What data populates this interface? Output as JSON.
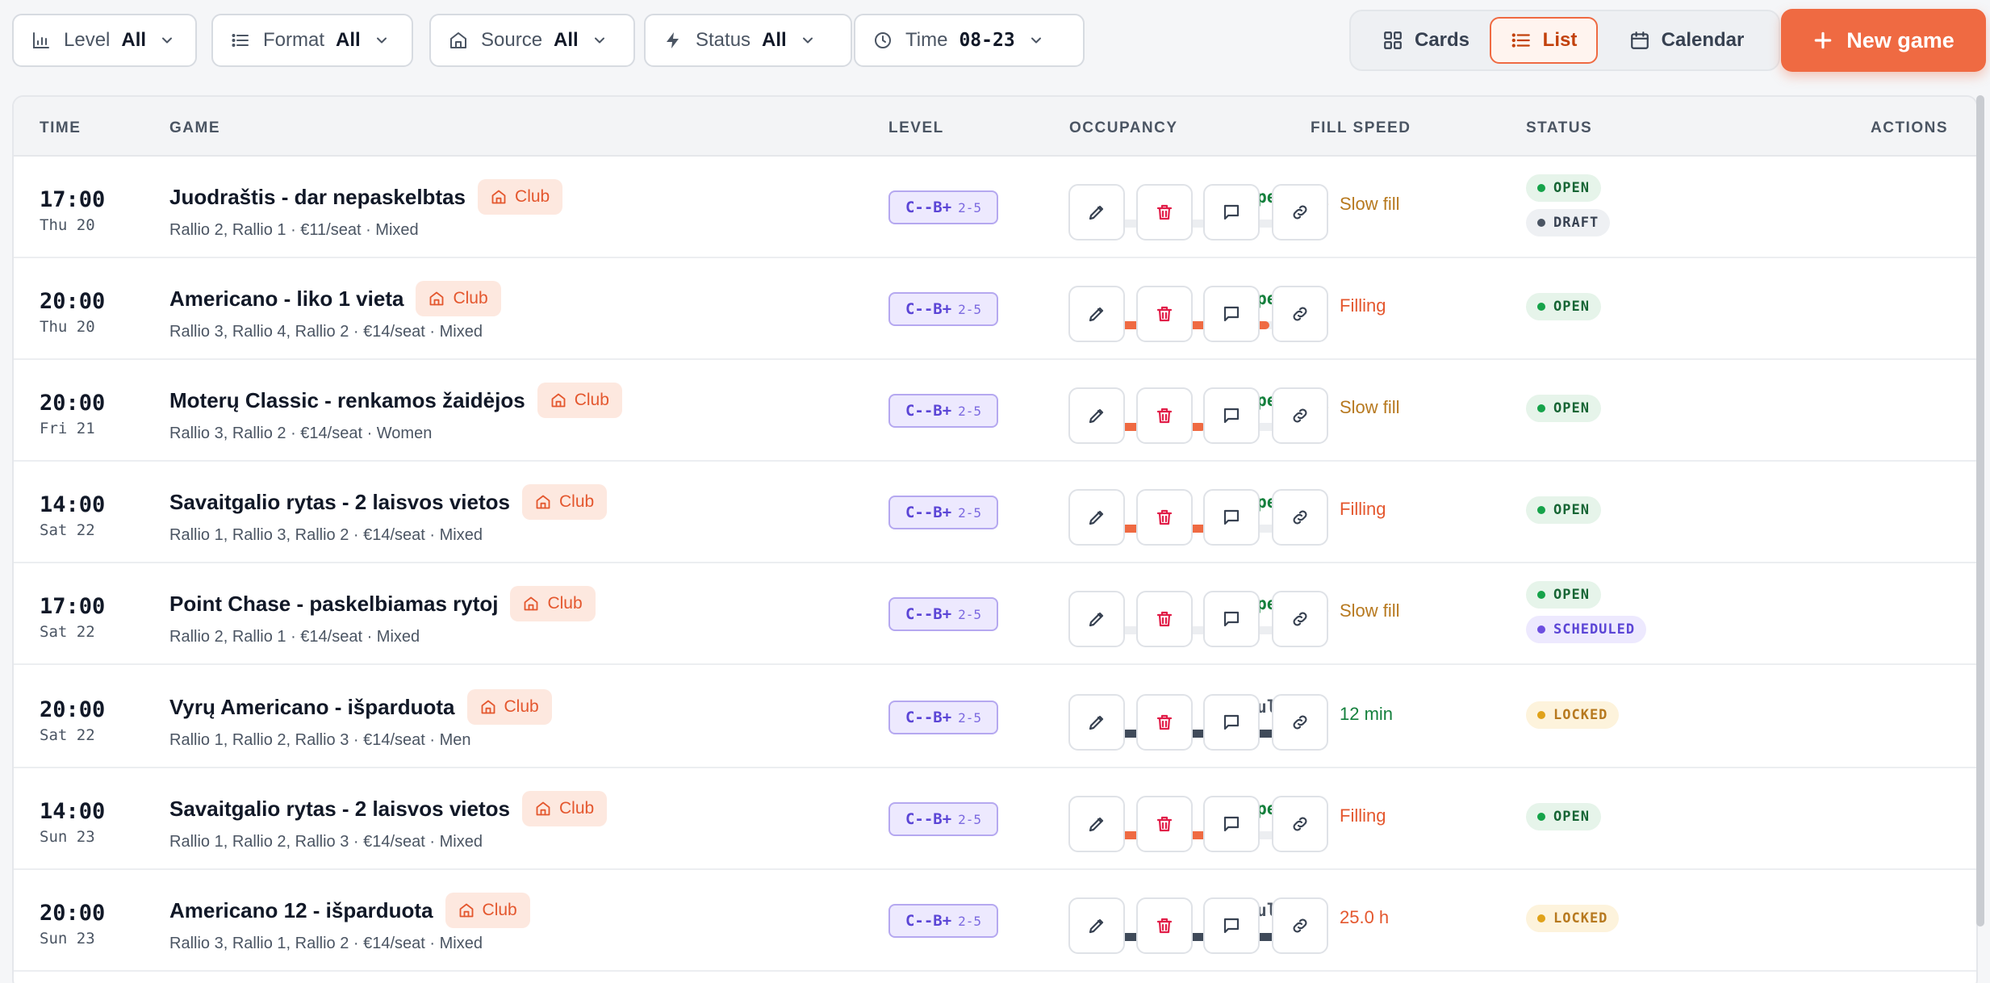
{
  "filters": [
    {
      "label": "Level",
      "value": "All",
      "icon": "bar-chart-icon"
    },
    {
      "label": "Format",
      "value": "All",
      "icon": "list-icon"
    },
    {
      "label": "Source",
      "value": "All",
      "icon": "home-icon"
    },
    {
      "label": "Status",
      "value": "All",
      "icon": "bolt-icon"
    },
    {
      "label": "Time",
      "value": "08-23",
      "icon": "clock-icon"
    }
  ],
  "views": {
    "cards": "Cards",
    "list": "List",
    "calendar": "Calendar",
    "active": "list"
  },
  "new_game_label": "New game",
  "columns": {
    "time": "TIME",
    "game": "GAME",
    "level": "LEVEL",
    "occupancy": "OCCUPANCY",
    "fill_speed": "FILL SPEED",
    "status": "STATUS",
    "actions": "ACTIONS"
  },
  "colors": {
    "accent": "#ef6a42",
    "bar_filling": "#ef6a42",
    "bar_full": "#3f4a59",
    "open": "#15803d",
    "draft": "#4b5563",
    "scheduled": "#6d4fe0",
    "locked": "#d97706"
  },
  "rows": [
    {
      "time": "17:00",
      "day": "Thu 20",
      "title": "Juodraštis - dar nepaskelbtas",
      "source": "Club",
      "details": "Rallio 2, Rallio 1 · €11/seat · Mixed",
      "level": "C--B+",
      "range": "2-5",
      "occupancy": "0/8",
      "fraction": 0,
      "open_label": "8 open",
      "full": false,
      "speed": "Slow fill",
      "speed_kind": "slow",
      "statuses": [
        "OPEN",
        "DRAFT"
      ]
    },
    {
      "time": "20:00",
      "day": "Thu 20",
      "title": "Americano - liko 1 vieta",
      "source": "Club",
      "details": "Rallio 3, Rallio 4, Rallio 2 · €14/seat · Mixed",
      "level": "C--B+",
      "range": "2-5",
      "occupancy": "11/12",
      "fraction": 0.9167,
      "open_label": "1 open",
      "full": false,
      "speed": "Filling",
      "speed_kind": "filling",
      "statuses": [
        "OPEN"
      ]
    },
    {
      "time": "20:00",
      "day": "Fri 21",
      "title": "Moterų Classic - renkamos žaidėjos",
      "source": "Club",
      "details": "Rallio 3, Rallio 2 · €14/seat · Women",
      "level": "C--B+",
      "range": "2-5",
      "occupancy": "5/8",
      "fraction": 0.625,
      "open_label": "3 open",
      "full": false,
      "speed": "Slow fill",
      "speed_kind": "slow",
      "statuses": [
        "OPEN"
      ]
    },
    {
      "time": "14:00",
      "day": "Sat 22",
      "title": "Savaitgalio rytas - 2 laisvos vietos",
      "source": "Club",
      "details": "Rallio 1, Rallio 3, Rallio 2 · €14/seat · Mixed",
      "level": "C--B+",
      "range": "2-5",
      "occupancy": "10/12",
      "fraction": 0.8333,
      "open_label": "2 open",
      "full": false,
      "speed": "Filling",
      "speed_kind": "filling",
      "statuses": [
        "OPEN"
      ]
    },
    {
      "time": "17:00",
      "day": "Sat 22",
      "title": "Point Chase - paskelbiamas rytoj",
      "source": "Club",
      "details": "Rallio 2, Rallio 1 · €14/seat · Mixed",
      "level": "C--B+",
      "range": "2-5",
      "occupancy": "0/8",
      "fraction": 0,
      "open_label": "8 open",
      "full": false,
      "speed": "Slow fill",
      "speed_kind": "slow",
      "statuses": [
        "OPEN",
        "SCHEDULED"
      ]
    },
    {
      "time": "20:00",
      "day": "Sat 22",
      "title": "Vyrų Americano - išparduota",
      "source": "Club",
      "details": "Rallio 1, Rallio 2, Rallio 3 · €14/seat · Men",
      "level": "C--B+",
      "range": "2-5",
      "occupancy": "12/12",
      "fraction": 1,
      "open_label": "Full",
      "full": true,
      "speed": "12 min",
      "speed_kind": "fast",
      "statuses": [
        "LOCKED"
      ]
    },
    {
      "time": "14:00",
      "day": "Sun 23",
      "title": "Savaitgalio rytas - 2 laisvos vietos",
      "source": "Club",
      "details": "Rallio 1, Rallio 2, Rallio 3 · €14/seat · Mixed",
      "level": "C--B+",
      "range": "2-5",
      "occupancy": "10/12",
      "fraction": 0.8333,
      "open_label": "2 open",
      "full": false,
      "speed": "Filling",
      "speed_kind": "filling",
      "statuses": [
        "OPEN"
      ]
    },
    {
      "time": "20:00",
      "day": "Sun 23",
      "title": "Americano 12 - išparduota",
      "source": "Club",
      "details": "Rallio 3, Rallio 1, Rallio 2 · €14/seat · Mixed",
      "level": "C--B+",
      "range": "2-5",
      "occupancy": "12/12",
      "fraction": 1,
      "open_label": "Full",
      "full": true,
      "speed": "25.0 h",
      "speed_kind": "filling",
      "statuses": [
        "LOCKED"
      ]
    }
  ],
  "row_actions": [
    "edit-icon",
    "trash-icon",
    "message-icon",
    "link-icon"
  ]
}
